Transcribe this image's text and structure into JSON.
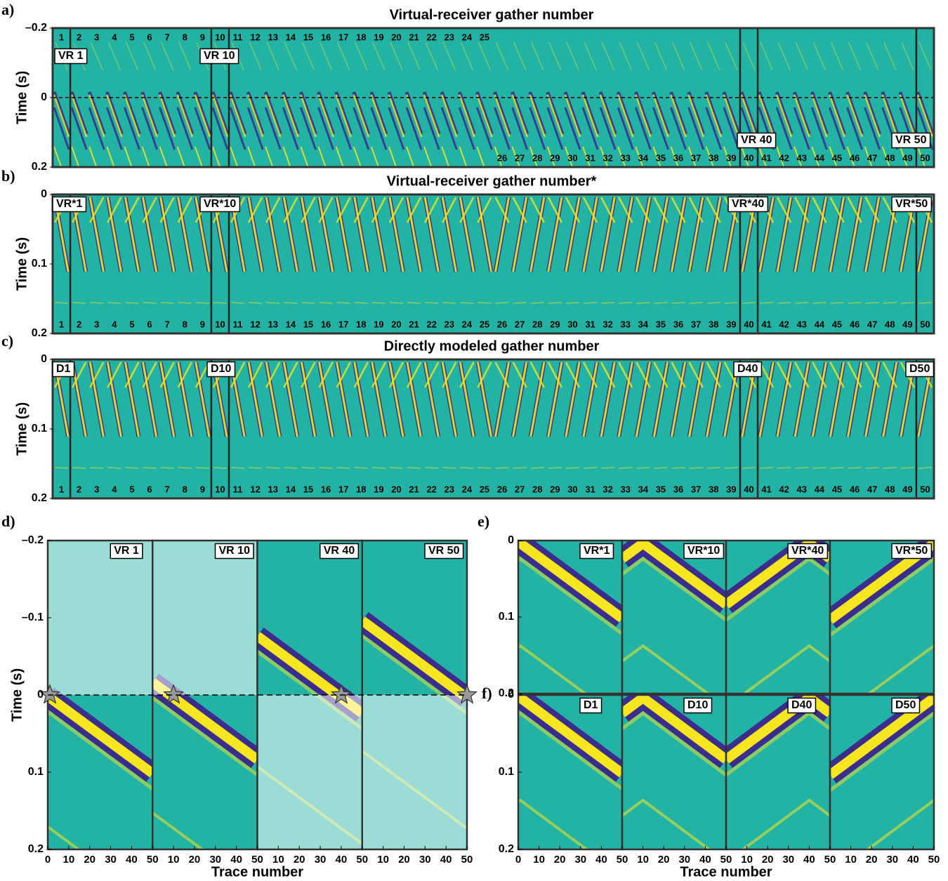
{
  "strips": [
    {
      "letter": "a)",
      "title": "Virtual-receiver gather number",
      "ylabel": "Time (s)",
      "ylim": [
        -0.2,
        0.2
      ],
      "yticks": [
        {
          "value": -0.2,
          "label": "–0.2"
        },
        0,
        0.2
      ],
      "gathers": [
        1,
        2,
        3,
        4,
        5,
        6,
        7,
        8,
        9,
        10,
        11,
        12,
        13,
        14,
        15,
        16,
        17,
        18,
        19,
        20,
        21,
        22,
        23,
        24,
        25,
        26,
        27,
        28,
        29,
        30,
        31,
        32,
        33,
        34,
        35,
        36,
        37,
        38,
        39,
        40,
        41,
        42,
        43,
        44,
        45,
        46,
        47,
        48,
        49,
        50
      ],
      "boxes": [
        "VR 1",
        "VR 10",
        "VR 40",
        "VR 50"
      ]
    },
    {
      "letter": "b)",
      "title": "Virtual-receiver gather number*",
      "ylabel": "Time (s)",
      "ylim": [
        0,
        0.2
      ],
      "yticks": [
        0,
        0.1,
        0.2
      ],
      "gathers": [
        1,
        2,
        3,
        4,
        5,
        6,
        7,
        8,
        9,
        10,
        11,
        12,
        13,
        14,
        15,
        16,
        17,
        18,
        19,
        20,
        21,
        22,
        23,
        24,
        25,
        26,
        27,
        28,
        29,
        30,
        31,
        32,
        33,
        34,
        35,
        36,
        37,
        38,
        39,
        40,
        41,
        42,
        43,
        44,
        45,
        46,
        47,
        48,
        49,
        50
      ],
      "boxes": [
        "VR*1",
        "VR*10",
        "VR*40",
        "VR*50"
      ]
    },
    {
      "letter": "c)",
      "title": "Directly modeled gather number",
      "ylabel": "Time (s)",
      "ylim": [
        0,
        0.2
      ],
      "yticks": [
        0,
        0.1,
        0.2
      ],
      "gathers": [
        1,
        2,
        3,
        4,
        5,
        6,
        7,
        8,
        9,
        10,
        11,
        12,
        13,
        14,
        15,
        16,
        17,
        18,
        19,
        20,
        21,
        22,
        23,
        24,
        25,
        26,
        27,
        28,
        29,
        30,
        31,
        32,
        33,
        34,
        35,
        36,
        37,
        38,
        39,
        40,
        41,
        42,
        43,
        44,
        45,
        46,
        47,
        48,
        49,
        50
      ],
      "boxes": [
        "D1",
        "D10",
        "D40",
        "D50"
      ]
    }
  ],
  "zooms": [
    {
      "letter": "d)",
      "ylabel": "Time (s)",
      "xlabel": "Trace number",
      "ylim": [
        -0.2,
        0.2
      ],
      "yticks": [
        {
          "value": -0.2,
          "label": "–0.2"
        },
        {
          "value": -0.1,
          "label": "–0.1"
        },
        0,
        0.1,
        0.2
      ],
      "xticks": [
        0,
        10,
        20,
        30,
        40,
        50
      ],
      "xlim": [
        0,
        50
      ],
      "boxes": [
        "VR 1",
        "VR 10",
        "VR 40",
        "VR 50"
      ],
      "source_traces": [
        1,
        10,
        40,
        50
      ]
    },
    {
      "letter": "e)",
      "ylim": [
        0,
        0.2
      ],
      "yticks": [
        0,
        0.1,
        0.2
      ],
      "xlim": [
        0,
        50
      ],
      "boxes": [
        "VR*1",
        "VR*10",
        "VR*40",
        "VR*50"
      ]
    },
    {
      "letter": "f)",
      "xlabel": "Trace number",
      "ylim": [
        0,
        0.2
      ],
      "yticks": [
        0,
        0.1,
        0.2
      ],
      "xticks": [
        0,
        10,
        20,
        30,
        40,
        50
      ],
      "xlim": [
        0,
        50
      ],
      "boxes": [
        "D1",
        "D10",
        "D40",
        "D50"
      ]
    }
  ]
}
